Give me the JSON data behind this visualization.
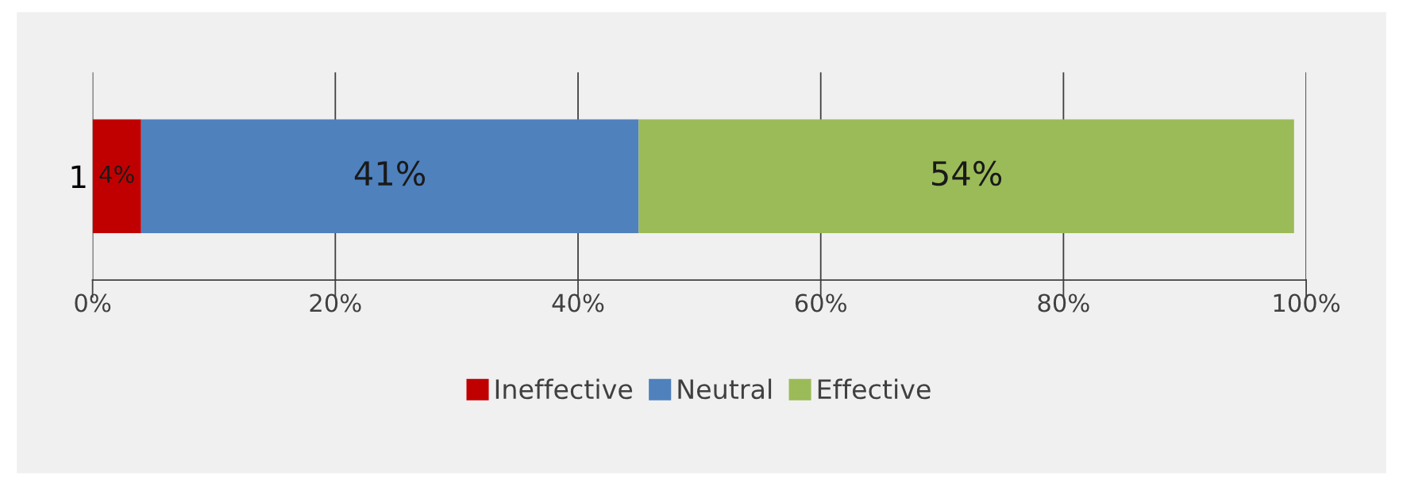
{
  "chart_data": {
    "type": "bar",
    "orientation": "horizontal",
    "stacked": true,
    "categories": [
      "1"
    ],
    "series": [
      {
        "name": "Ineffective",
        "color": "#c00000",
        "values": [
          4
        ],
        "value_labels": [
          "4%"
        ]
      },
      {
        "name": "Neutral",
        "color": "#4f81bd",
        "values": [
          41
        ],
        "value_labels": [
          "41%"
        ]
      },
      {
        "name": "Effective",
        "color": "#9bbb59",
        "values": [
          54
        ],
        "value_labels": [
          "54%"
        ]
      }
    ],
    "xlim": [
      0,
      100
    ],
    "xticks": [
      {
        "value": 0,
        "label": "0%"
      },
      {
        "value": 20,
        "label": "20%"
      },
      {
        "value": 40,
        "label": "40%"
      },
      {
        "value": 60,
        "label": "60%"
      },
      {
        "value": 80,
        "label": "80%"
      },
      {
        "value": 100,
        "label": "100%"
      }
    ],
    "grid": "x",
    "legend": "bottom"
  }
}
